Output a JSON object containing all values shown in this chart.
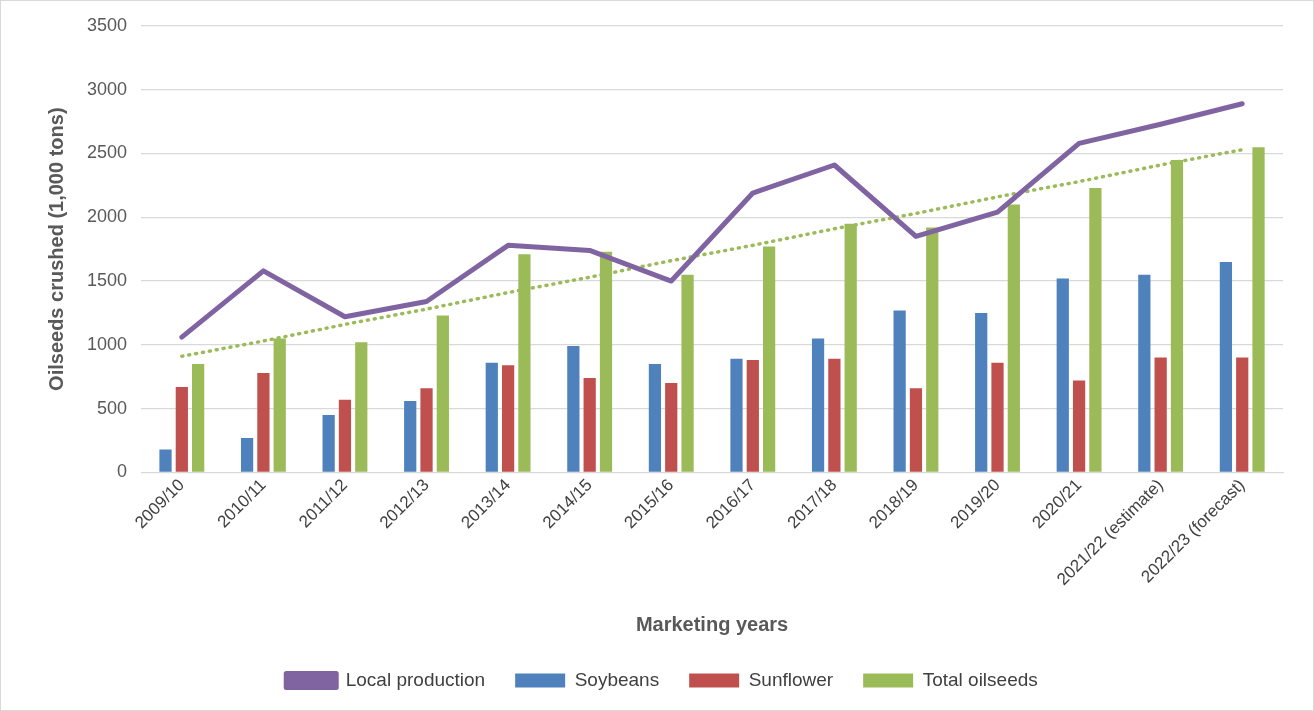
{
  "chart_data": {
    "type": "bar",
    "xlabel": "Marketing years",
    "ylabel": "Oilseeds crushed (1,000 tons)",
    "categories": [
      "2009/10",
      "2010/11",
      "2011/12",
      "2012/13",
      "2013/14",
      "2014/15",
      "2015/16",
      "2016/17",
      "2017/18",
      "2018/19",
      "2019/20",
      "2020/21",
      "2021/22 (estimate)",
      "2022/23 (forecast)"
    ],
    "series": [
      {
        "name": "Soybeans",
        "color": "#4f81bd",
        "values": [
          180,
          270,
          450,
          560,
          860,
          990,
          850,
          890,
          1050,
          1270,
          1250,
          1520,
          1550,
          1650
        ]
      },
      {
        "name": "Sunflower",
        "color": "#c0504d",
        "values": [
          670,
          780,
          570,
          660,
          840,
          740,
          700,
          880,
          890,
          660,
          860,
          720,
          900,
          900
        ]
      },
      {
        "name": "Total oilseeds",
        "color": "#9bbb59",
        "values": [
          850,
          1050,
          1020,
          1230,
          1710,
          1730,
          1550,
          1770,
          1950,
          1920,
          2100,
          2230,
          2450,
          2550
        ]
      },
      {
        "name": "Local production",
        "type": "line",
        "color": "#8064a2",
        "values": [
          1060,
          1580,
          1220,
          1340,
          1780,
          1740,
          1500,
          2190,
          2410,
          1850,
          2040,
          2580,
          2730,
          2890
        ]
      },
      {
        "type": "line",
        "line_style": "dotted",
        "color": "#9bbb59",
        "values": [
          910,
          1030,
          1160,
          1280,
          1410,
          1530,
          1660,
          1780,
          1910,
          2030,
          2160,
          2280,
          2410,
          2530
        ]
      }
    ],
    "ylim": [
      0,
      3500
    ],
    "yticks": [
      0,
      500,
      1000,
      1500,
      2000,
      2500,
      3000,
      3500
    ],
    "grid": "y",
    "legend": "bottom",
    "marker": "none"
  }
}
